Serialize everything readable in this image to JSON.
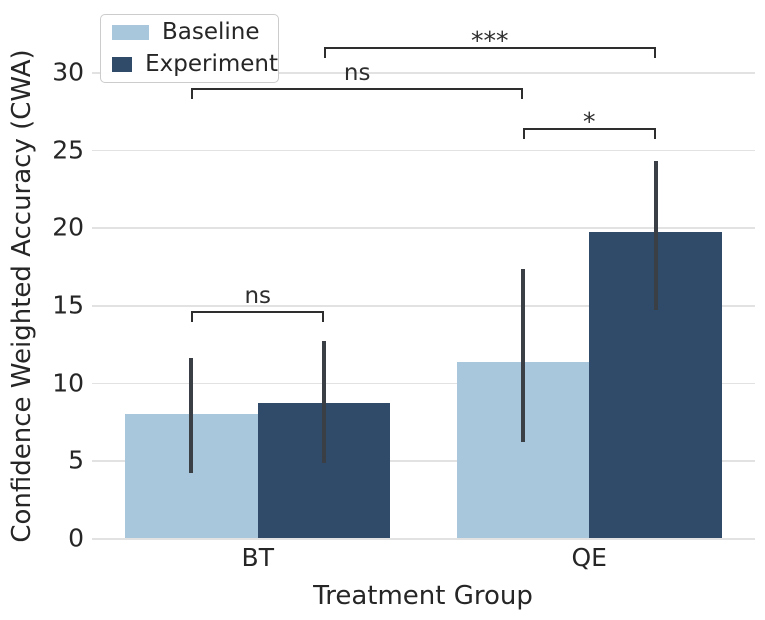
{
  "chart_data": {
    "type": "bar",
    "title": "",
    "xlabel": "Treatment Group",
    "ylabel": "Confidence Weighted Accuracy (CWA)",
    "categories": [
      "BT",
      "QE"
    ],
    "series": [
      {
        "name": "Baseline",
        "color": "#a8c7dd",
        "values": [
          8.0,
          11.3
        ],
        "err_low": [
          4.2,
          6.2
        ],
        "err_high": [
          11.6,
          17.3
        ]
      },
      {
        "name": "Experiment",
        "color": "#2f4b69",
        "values": [
          8.7,
          19.7
        ],
        "err_low": [
          4.8,
          14.7
        ],
        "err_high": [
          12.7,
          24.3
        ]
      }
    ],
    "yticks": [
      0,
      5,
      10,
      15,
      20,
      25,
      30
    ],
    "ylim": [
      0,
      34.6
    ],
    "grid": "horizontal-only",
    "grid_color": "#e2e2e2",
    "error_bar_color": "#3a3f45",
    "annotation_color": "#2e2e2e",
    "text_color": "#262626",
    "legend_position": "upper left",
    "annotations": [
      {
        "label": "ns",
        "from": {
          "category": 0,
          "series": 0
        },
        "to": {
          "category": 0,
          "series": 1
        },
        "y": 14.6
      },
      {
        "label": "*",
        "from": {
          "category": 1,
          "series": 0
        },
        "to": {
          "category": 1,
          "series": 1
        },
        "y": 26.4
      },
      {
        "label": "ns",
        "from": {
          "category": 0,
          "series": 0
        },
        "to": {
          "category": 1,
          "series": 0
        },
        "y": 29.0
      },
      {
        "label": "***",
        "from": {
          "category": 0,
          "series": 1
        },
        "to": {
          "category": 1,
          "series": 1
        },
        "y": 31.6
      }
    ]
  }
}
